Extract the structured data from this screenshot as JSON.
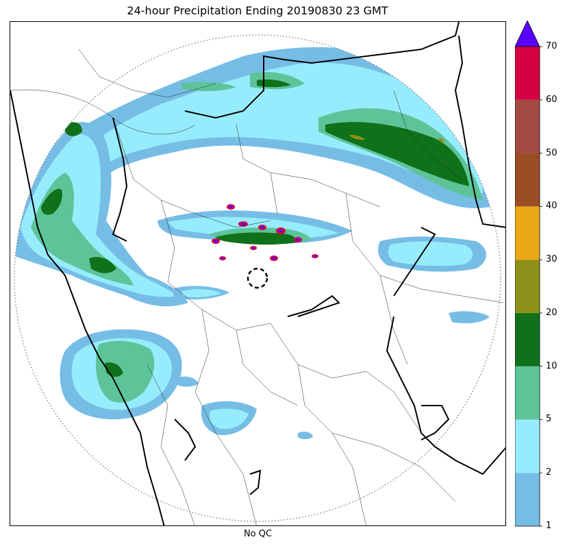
{
  "title": "24-hour Precipitation Ending 20190830 23 GMT",
  "xlabel": "No QC",
  "colorbar": {
    "extend": "max",
    "extend_color": "#5a00ff",
    "levels": [
      {
        "value": "1",
        "color": "#76bde6"
      },
      {
        "value": "2",
        "color": "#96ecfc"
      },
      {
        "value": "5",
        "color": "#5dc49a"
      },
      {
        "value": "10",
        "color": "#0f7119"
      },
      {
        "value": "20",
        "color": "#8e9019"
      },
      {
        "value": "30",
        "color": "#e8a817"
      },
      {
        "value": "40",
        "color": "#9b4d24"
      },
      {
        "value": "50",
        "color": "#a14a42"
      },
      {
        "value": "60",
        "color": "#d40042"
      },
      {
        "value": "70",
        "color": ""
      }
    ]
  },
  "map": {
    "range_ring": "dotted",
    "radar_marker": "dashed-circle",
    "colors": {
      "light_blue": "#76bde6",
      "cyan": "#96ecfc",
      "green": "#5dc49a",
      "dark_green": "#0f7119",
      "olive": "#8e9019",
      "red": "#d40042",
      "purple": "#5a00ff"
    }
  }
}
